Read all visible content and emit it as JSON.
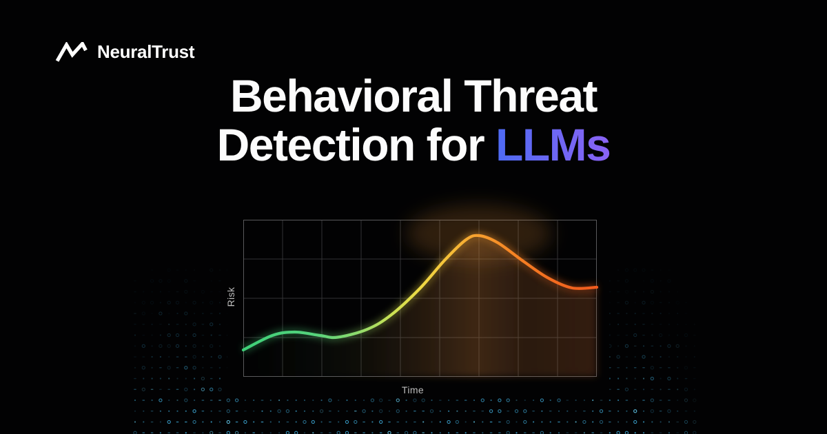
{
  "brand": {
    "name": "NeuralTrust",
    "icon": "neuraltrust-zigzag-icon"
  },
  "headline": {
    "line1": "Behavioral Threat",
    "line2_prefix": "Detection for",
    "highlight": "LLMs"
  },
  "chart": {
    "ylabel": "Risk",
    "xlabel": "Time"
  },
  "chart_data": {
    "type": "line",
    "title": "",
    "xlabel": "Time",
    "ylabel": "Risk",
    "x_range": [
      0,
      1
    ],
    "y_range": [
      0,
      1
    ],
    "tick_labels": "none shown",
    "legend": "none",
    "grid": {
      "columns": 9,
      "rows": 4,
      "visible": true
    },
    "series": [
      {
        "name": "risk-over-time",
        "points": [
          [
            0.0,
            0.171
          ],
          [
            0.082,
            0.263
          ],
          [
            0.146,
            0.285
          ],
          [
            0.218,
            0.263
          ],
          [
            0.267,
            0.252
          ],
          [
            0.351,
            0.303
          ],
          [
            0.419,
            0.395
          ],
          [
            0.501,
            0.566
          ],
          [
            0.569,
            0.741
          ],
          [
            0.63,
            0.873
          ],
          [
            0.667,
            0.899
          ],
          [
            0.719,
            0.855
          ],
          [
            0.789,
            0.741
          ],
          [
            0.86,
            0.632
          ],
          [
            0.93,
            0.566
          ],
          [
            1.0,
            0.57
          ]
        ]
      }
    ],
    "line_gradient": [
      {
        "offset": 0.0,
        "color": "#3ecf78"
      },
      {
        "offset": 0.2,
        "color": "#55d37d"
      },
      {
        "offset": 0.32,
        "color": "#8cdb6d"
      },
      {
        "offset": 0.42,
        "color": "#cbe254"
      },
      {
        "offset": 0.5,
        "color": "#eeda45"
      },
      {
        "offset": 0.58,
        "color": "#f6c038"
      },
      {
        "offset": 0.66,
        "color": "#f7a12f"
      },
      {
        "offset": 0.76,
        "color": "#f68524"
      },
      {
        "offset": 0.88,
        "color": "#f26a1f"
      },
      {
        "offset": 1.0,
        "color": "#f25b1e"
      }
    ]
  },
  "colors": {
    "background": "#020203",
    "headline_text": "#fcfcfc",
    "highlight_gradient_start": "#4e6bf4",
    "highlight_gradient_end": "#8a63f4",
    "axis_label": "#bdbdbd",
    "grid_line": "#333335",
    "grid_border": "#5a5a5c",
    "dot_pattern": "#3ba0cb",
    "dot_pattern_bright": "#62c8ea"
  }
}
